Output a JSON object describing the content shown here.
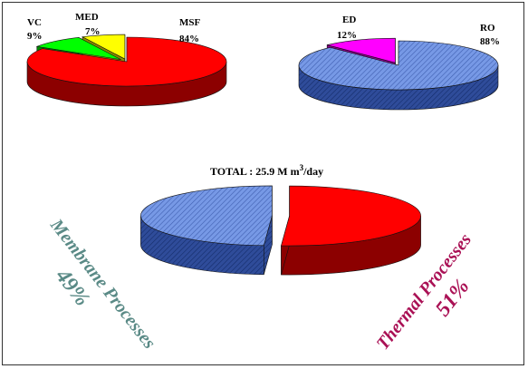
{
  "chart_data": [
    {
      "type": "pie",
      "id": "thermal",
      "slices": [
        {
          "name": "MSF",
          "pct_label": "84%",
          "value": 84,
          "color": "#ff0000"
        },
        {
          "name": "VC",
          "pct_label": "9%",
          "value": 9,
          "color": "#00ff00"
        },
        {
          "name": "MED",
          "pct_label": "7%",
          "value": 7,
          "color": "#ffff00"
        }
      ]
    },
    {
      "type": "pie",
      "id": "membrane",
      "slices": [
        {
          "name": "RO",
          "pct_label": "88%",
          "value": 88,
          "color": "#6688dd"
        },
        {
          "name": "ED",
          "pct_label": "12%",
          "value": 12,
          "color": "#ff00ff"
        }
      ]
    },
    {
      "type": "pie",
      "id": "total",
      "title_prefix": "TOTAL : 25.9 M m",
      "title_sup": "3",
      "title_suffix": "/day",
      "slices": [
        {
          "name": "Membrane Processes",
          "pct_label": "49%",
          "value": 49,
          "color": "#6688dd"
        },
        {
          "name": "Thermal Processes",
          "pct_label": "51%",
          "value": 51,
          "color": "#ff0000"
        }
      ]
    }
  ],
  "colors": {
    "membrane_text": "#5a8a86",
    "thermal_text": "#aa1155"
  }
}
